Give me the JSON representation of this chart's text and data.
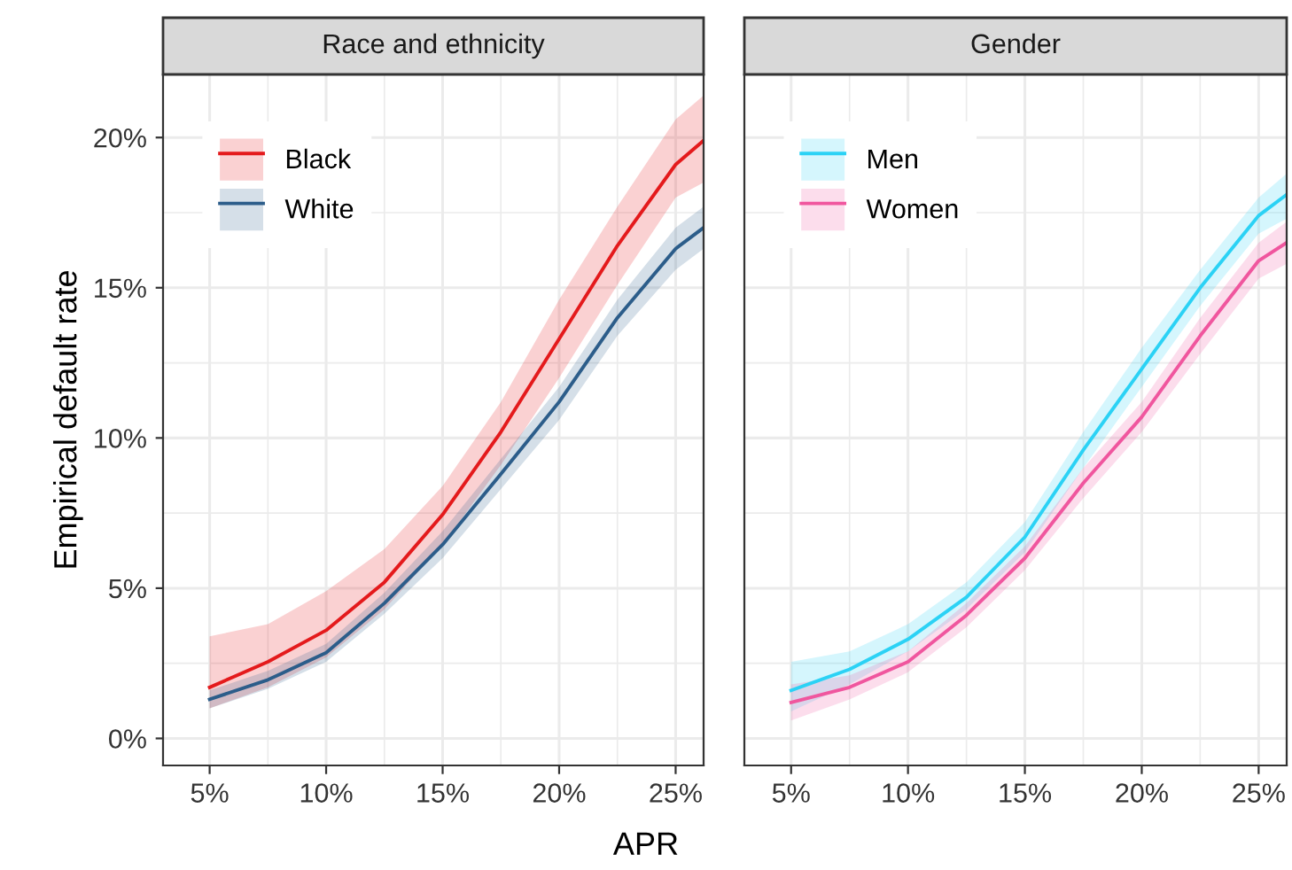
{
  "chart_data": [
    {
      "type": "line",
      "title": "Race and ethnicity",
      "xlabel": "APR",
      "ylabel": "Empirical default rate",
      "x": [
        5,
        7.5,
        10,
        12.5,
        15,
        17.5,
        20,
        22.5,
        25,
        26.2
      ],
      "series": [
        {
          "name": "Black",
          "color": "#e41a1c",
          "values": [
            1.7,
            2.55,
            3.6,
            5.2,
            7.45,
            10.2,
            13.3,
            16.4,
            19.1,
            19.9
          ],
          "lower": [
            1.0,
            1.7,
            2.7,
            4.3,
            6.45,
            9.1,
            12.0,
            15.1,
            18.0,
            18.5
          ],
          "upper": [
            3.4,
            3.8,
            4.9,
            6.3,
            8.4,
            11.2,
            14.6,
            17.7,
            20.6,
            21.4
          ]
        },
        {
          "name": "White",
          "color": "#2c5d8a",
          "values": [
            1.3,
            1.95,
            2.85,
            4.5,
            6.45,
            8.8,
            11.2,
            14.0,
            16.3,
            17.0
          ],
          "lower": [
            1.0,
            1.65,
            2.55,
            4.15,
            6.0,
            8.3,
            10.6,
            13.4,
            15.6,
            16.3
          ],
          "upper": [
            1.6,
            2.25,
            3.15,
            4.85,
            6.9,
            9.3,
            11.7,
            14.6,
            17.0,
            17.7
          ]
        }
      ],
      "xlim": [
        3,
        26.2
      ],
      "ylim": [
        -0.9,
        22.1
      ],
      "xticks": [
        {
          "value": 5,
          "label": "5%"
        },
        {
          "value": 10,
          "label": "10%"
        },
        {
          "value": 15,
          "label": "15%"
        },
        {
          "value": 20,
          "label": "20%"
        },
        {
          "value": 25,
          "label": "25%"
        }
      ],
      "yticks": [
        {
          "value": 0,
          "label": "0%"
        },
        {
          "value": 5,
          "label": "5%"
        },
        {
          "value": 10,
          "label": "10%"
        },
        {
          "value": 15,
          "label": "15%"
        },
        {
          "value": 20,
          "label": "20%"
        }
      ],
      "grid": true,
      "legend": "top left"
    },
    {
      "type": "line",
      "title": "Gender",
      "x": [
        5,
        7.5,
        10,
        12.5,
        15,
        17.5,
        20,
        22.5,
        25,
        26.2
      ],
      "series": [
        {
          "name": "Men",
          "color": "#2bd2f5",
          "values": [
            1.6,
            2.3,
            3.3,
            4.7,
            6.7,
            9.6,
            12.3,
            15.0,
            17.4,
            18.1
          ],
          "lower": [
            0.9,
            1.8,
            2.9,
            4.3,
            6.2,
            9.0,
            11.7,
            14.4,
            16.8,
            17.3
          ],
          "upper": [
            2.55,
            2.9,
            3.8,
            5.2,
            7.2,
            10.2,
            13.0,
            15.6,
            18.0,
            18.8
          ]
        },
        {
          "name": "Women",
          "color": "#f0569e",
          "values": [
            1.2,
            1.7,
            2.55,
            4.1,
            6.0,
            8.5,
            10.7,
            13.4,
            15.9,
            16.5
          ],
          "lower": [
            0.6,
            1.3,
            2.2,
            3.7,
            5.6,
            8.0,
            10.2,
            12.8,
            15.3,
            15.8
          ],
          "upper": [
            1.8,
            2.1,
            2.9,
            4.5,
            6.4,
            9.0,
            11.2,
            14.0,
            16.5,
            17.2
          ]
        }
      ],
      "xlim": [
        3,
        26.2
      ],
      "ylim": [
        -0.9,
        22.1
      ],
      "xticks": [
        {
          "value": 5,
          "label": "5%"
        },
        {
          "value": 10,
          "label": "10%"
        },
        {
          "value": 15,
          "label": "15%"
        },
        {
          "value": 20,
          "label": "20%"
        },
        {
          "value": 25,
          "label": "25%"
        }
      ],
      "yticks": [
        {
          "value": 0,
          "label": null
        },
        {
          "value": 5,
          "label": null
        },
        {
          "value": 10,
          "label": null
        },
        {
          "value": 15,
          "label": null
        },
        {
          "value": 20,
          "label": null
        }
      ],
      "tick_labels": "x",
      "grid": true,
      "legend": "top left"
    }
  ]
}
